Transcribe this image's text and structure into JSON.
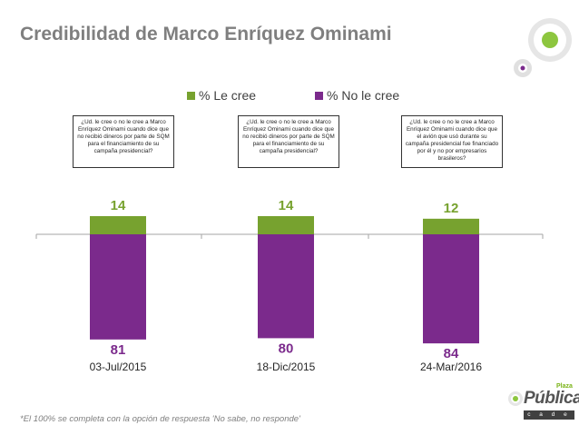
{
  "title": "Credibilidad de Marco Enríquez Ominami",
  "legend": [
    {
      "label": "% Le cree",
      "color": "#77a22f"
    },
    {
      "label": "% No le cree",
      "color": "#7b2a8c"
    }
  ],
  "questions": [
    "¿Ud. le cree o no le cree a Marco Enríquez Ominami cuando dice que no recibió dineros por parte de SQM para el financiamiento de su campaña presidencial?",
    "¿Ud. le cree o no le cree a Marco Enríquez Ominami cuando dice que no recibió dineros por parte de SQM para el financiamiento de su campaña presidencial?",
    "¿Ud. le cree o no le cree a Marco Enríquez Ominami cuando dice que el avión que usó durante su campaña presidencial fue financiado por él y no por empresarios brasileros?"
  ],
  "chart_data": {
    "type": "bar",
    "categories": [
      "03-Jul/2015",
      "18-Dic/2015",
      "24-Mar/2016"
    ],
    "series": [
      {
        "name": "% Le cree",
        "values": [
          14,
          14,
          12
        ],
        "color": "#77a22f"
      },
      {
        "name": "% No le cree",
        "values": [
          81,
          80,
          84
        ],
        "color": "#7b2a8c"
      }
    ],
    "orientation": "diverging from baseline (Le cree above, No le cree below)",
    "grid": false,
    "legend_position": "top-center"
  },
  "footnote": "*El 100% se completa con la opción de respuesta 'No sabe, no responde'",
  "logo": {
    "brand_small": "Plaza",
    "brand": "Pública",
    "strip": "c a d e m"
  }
}
